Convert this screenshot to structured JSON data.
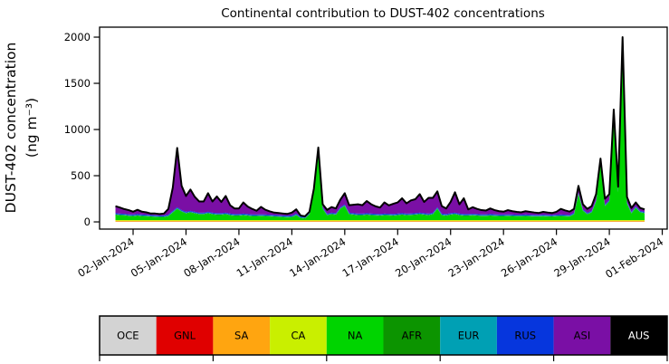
{
  "title": "Continental contribution to DUST-402 concentrations",
  "y_axis": {
    "label_line1": "DUST-402 concentration",
    "label_line2": "(ng m⁻³)",
    "ticks": [
      0,
      500,
      1000,
      1500,
      2000
    ]
  },
  "x_axis": {
    "tick_labels": [
      "02-Jan-2024",
      "05-Jan-2024",
      "08-Jan-2024",
      "11-Jan-2024",
      "14-Jan-2024",
      "17-Jan-2024",
      "20-Jan-2024",
      "23-Jan-2024",
      "26-Jan-2024",
      "29-Jan-2024",
      "01-Feb-2024"
    ]
  },
  "legend": {
    "items": [
      {
        "label": "OCE",
        "color": "#d3d3d3",
        "text_color": "#000000"
      },
      {
        "label": "GNL",
        "color": "#e00000",
        "text_color": "#000000"
      },
      {
        "label": "SA",
        "color": "#ffa510",
        "text_color": "#000000"
      },
      {
        "label": "CA",
        "color": "#c9ef00",
        "text_color": "#000000"
      },
      {
        "label": "NA",
        "color": "#00d400",
        "text_color": "#000000"
      },
      {
        "label": "AFR",
        "color": "#0c9400",
        "text_color": "#000000"
      },
      {
        "label": "EUR",
        "color": "#00a0b4",
        "text_color": "#000000"
      },
      {
        "label": "RUS",
        "color": "#0636dd",
        "text_color": "#000000"
      },
      {
        "label": "ASI",
        "color": "#7a0fa5",
        "text_color": "#000000"
      },
      {
        "label": "AUS",
        "color": "#000000",
        "text_color": "#ffffff"
      }
    ]
  },
  "chart_data": {
    "type": "area",
    "stacked": true,
    "title": "Continental contribution to DUST-402 concentrations",
    "xlabel": "",
    "ylabel": "DUST-402 concentration (ng m⁻³)",
    "x_start_date": "01-Jan-2024",
    "x_step_days": 0.25,
    "x_start_day": 0,
    "x_tick_days": [
      1,
      4,
      7,
      10,
      13,
      16,
      19,
      22,
      25,
      28,
      31
    ],
    "xlim_days": [
      -0.9,
      31.28
    ],
    "ylim": [
      -78,
      2108
    ],
    "grid": false,
    "legend_position": "bottom-strip",
    "outline_color": "#000000",
    "units": "ng m-3",
    "series": [
      {
        "name": "OCE",
        "color": "#d3d3d3",
        "values": 1.5
      },
      {
        "name": "GNL",
        "color": "#e00000",
        "values": 1
      },
      {
        "name": "SA",
        "color": "#ffa510",
        "values": 9
      },
      {
        "name": "CA",
        "color": "#c9ef00",
        "values": 8
      },
      {
        "name": "NA",
        "color": "#00d400",
        "values": [
          55,
          50,
          48,
          42,
          40,
          45,
          40,
          38,
          35,
          32,
          30,
          30,
          40,
          80,
          120,
          90,
          70,
          80,
          70,
          60,
          60,
          70,
          60,
          55,
          55,
          60,
          50,
          45,
          45,
          50,
          45,
          40,
          40,
          42,
          40,
          38,
          35,
          33,
          30,
          28,
          30,
          50,
          20,
          15,
          60,
          300,
          730,
          120,
          50,
          60,
          55,
          120,
          150,
          60,
          55,
          50,
          50,
          55,
          50,
          48,
          45,
          50,
          48,
          45,
          50,
          55,
          50,
          52,
          55,
          60,
          55,
          50,
          60,
          120,
          50,
          45,
          55,
          60,
          50,
          45,
          45,
          48,
          45,
          42,
          42,
          45,
          42,
          40,
          40,
          42,
          40,
          38,
          38,
          40,
          38,
          36,
          36,
          38,
          36,
          35,
          38,
          40,
          38,
          36,
          60,
          280,
          100,
          60,
          80,
          200,
          600,
          150,
          200,
          1120,
          300,
          1900,
          180,
          70,
          130,
          80,
          70
        ]
      },
      {
        "name": "AFR",
        "color": "#0c9400",
        "values": 5
      },
      {
        "name": "EUR",
        "color": "#00a0b4",
        "values": 6
      },
      {
        "name": "RUS",
        "color": "#0636dd",
        "values": 9
      },
      {
        "name": "ASI",
        "color": "#7a0fa5",
        "values": [
          75,
          65,
          50,
          45,
          30,
          45,
          30,
          25,
          15,
          18,
          15,
          20,
          60,
          250,
          640,
          260,
          170,
          230,
          160,
          120,
          120,
          200,
          120,
          180,
          120,
          180,
          90,
          60,
          60,
          120,
          80,
          60,
          40,
          80,
          50,
          35,
          25,
          22,
          20,
          18,
          30,
          45,
          8,
          5,
          10,
          20,
          35,
          30,
          40,
          60,
          50,
          80,
          120,
          80,
          90,
          100,
          90,
          130,
          100,
          80,
          70,
          120,
          90,
          110,
          120,
          160,
          110,
          140,
          150,
          200,
          120,
          170,
          160,
          170,
          80,
          60,
          120,
          220,
          100,
          170,
          50,
          70,
          55,
          45,
          40,
          60,
          45,
          35,
          30,
          45,
          35,
          30,
          25,
          35,
          30,
          25,
          20,
          30,
          25,
          20,
          30,
          60,
          45,
          35,
          40,
          70,
          50,
          40,
          50,
          60,
          45,
          60,
          60,
          55,
          40,
          60,
          50,
          40,
          40,
          30,
          25
        ]
      },
      {
        "name": "AUS",
        "color": "#000000",
        "values": 1
      }
    ]
  }
}
